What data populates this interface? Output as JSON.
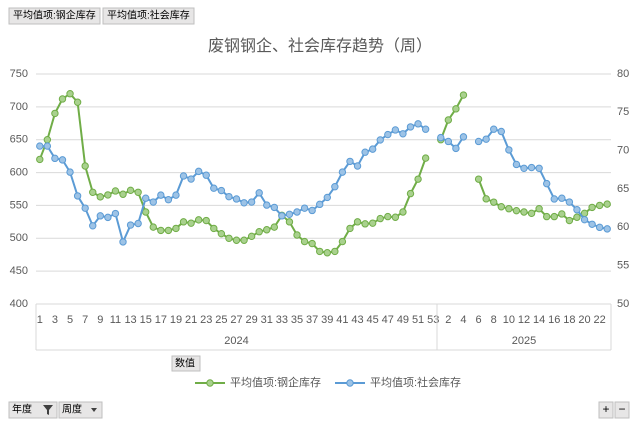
{
  "chart_data": {
    "type": "line",
    "title": "废钢钢企、社会库存趋势（周）",
    "field_buttons": [
      "平均值项:钢企库存",
      "平均值项:社会库存"
    ],
    "values_button": "数值",
    "filter_buttons": [
      "年度",
      "周度"
    ],
    "zoom_buttons": [
      "+",
      "−"
    ],
    "category_groups": [
      {
        "label": "2024",
        "categories": [
          "1",
          null,
          "3",
          null,
          "5",
          null,
          "7",
          null,
          "9",
          null,
          "11",
          null,
          "13",
          null,
          "15",
          null,
          "17",
          null,
          "19",
          null,
          "21",
          null,
          "23",
          null,
          "25",
          null,
          "27",
          null,
          "29",
          null,
          "31",
          null,
          "33",
          null,
          "35",
          null,
          "37",
          null,
          "39",
          null,
          "41",
          null,
          "43",
          null,
          "45",
          null,
          "47",
          null,
          "49",
          null,
          "51",
          null,
          "53"
        ]
      },
      {
        "label": "2025",
        "categories": [
          null,
          "2",
          null,
          "4",
          null,
          "6",
          null,
          "8",
          null,
          "10",
          null,
          "12",
          null,
          "14",
          null,
          "16",
          null,
          "18",
          null,
          "20",
          null,
          "22",
          null
        ]
      }
    ],
    "ylim": [
      400,
      750
    ],
    "yticks": [
      400,
      450,
      500,
      550,
      600,
      650,
      700,
      750
    ],
    "y2lim": [
      50,
      80
    ],
    "y2ticks": [
      50,
      55,
      60,
      65,
      70,
      75,
      80
    ],
    "grid": true,
    "legend": "bottom",
    "series": [
      {
        "name": "平均值项:钢企库存",
        "color": "#70ad47",
        "fill": "#a9d18e",
        "axis": "y",
        "values": [
          620,
          650,
          690,
          712,
          720,
          707,
          610,
          570,
          563,
          566,
          572,
          567,
          573,
          570,
          540,
          517,
          512,
          512,
          515,
          525,
          523,
          528,
          527,
          515,
          507,
          500,
          497,
          497,
          503,
          510,
          513,
          517,
          535,
          525,
          505,
          495,
          492,
          480,
          478,
          480,
          495,
          515,
          525,
          522,
          523,
          530,
          533,
          532,
          540,
          568,
          590,
          622,
          null,
          650,
          680,
          697,
          718,
          null,
          590,
          560,
          555,
          548,
          545,
          542,
          540,
          538,
          545,
          533,
          533,
          537,
          527,
          532,
          538,
          547,
          550,
          552
        ]
      },
      {
        "name": "平均值项:社会库存",
        "color": "#5b9bd5",
        "fill": "#9dc3e6",
        "axis": "y2",
        "values": [
          70.6,
          70.6,
          69,
          68.8,
          67.2,
          64.1,
          62.5,
          60.2,
          61.5,
          61.3,
          61.8,
          58.1,
          60.3,
          60.5,
          63.8,
          63.3,
          64.2,
          63.6,
          64.2,
          66.7,
          66.3,
          67.3,
          66.8,
          65.1,
          64.8,
          64,
          63.7,
          63.2,
          63.3,
          64.5,
          62.9,
          62.6,
          61.5,
          61.7,
          62,
          62.5,
          62.2,
          63,
          63.9,
          65.3,
          67.2,
          68.6,
          68,
          69.8,
          70.2,
          71.4,
          72.1,
          72.7,
          72.2,
          73.1,
          73.5,
          72.8,
          null,
          71.7,
          71.2,
          70.3,
          71.8,
          null,
          71.2,
          71.5,
          72.8,
          72.5,
          70.1,
          68.2,
          67.7,
          67.8,
          67.7,
          65.7,
          63.7,
          63.8,
          63.3,
          62.3,
          61,
          60.4,
          60,
          59.8
        ]
      }
    ]
  }
}
